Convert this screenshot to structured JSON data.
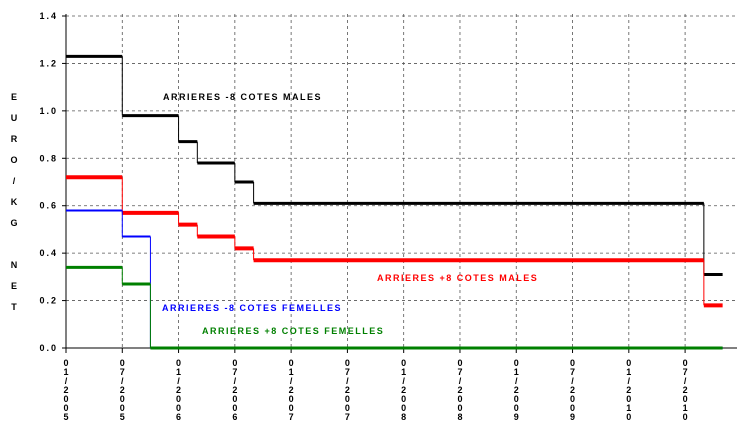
{
  "chart_data": {
    "type": "step",
    "y_label": "EURO/KG NET",
    "xlim": [
      "01/2005",
      "12/2010"
    ],
    "xticks": [
      "01/2005",
      "07/2005",
      "01/2006",
      "07/2006",
      "01/2007",
      "07/2007",
      "01/2008",
      "07/2008",
      "01/2009",
      "07/2009",
      "01/2010",
      "07/2010"
    ],
    "ylim": [
      0,
      1.4
    ],
    "yticks": [
      {
        "value": 0,
        "label": "0.0"
      },
      {
        "value": 0.2,
        "label": "0.2"
      },
      {
        "value": 0.4,
        "label": "0.4"
      },
      {
        "value": 0.6,
        "label": "0.6"
      },
      {
        "value": 0.8,
        "label": "0.8"
      },
      {
        "value": 1,
        "label": "1.0"
      },
      {
        "value": 1.2,
        "label": "1.2"
      },
      {
        "value": 1.4,
        "label": "1.4"
      }
    ],
    "grid": true,
    "series": [
      {
        "name": "ARRIERES -8 COTES MALES",
        "color": "#000000",
        "x": [
          "01/2005",
          "07/2005",
          "01/2006",
          "03/2006",
          "07/2006",
          "09/2006",
          "09/2010",
          "11/2010"
        ],
        "values": [
          1.23,
          0.98,
          0.87,
          0.78,
          0.7,
          0.61,
          0.31,
          0.31
        ]
      },
      {
        "name": "ARRIERES +8 COTES MALES",
        "color": "#ff0000",
        "x": [
          "01/2005",
          "07/2005",
          "01/2006",
          "03/2006",
          "07/2006",
          "09/2006",
          "09/2010",
          "11/2010"
        ],
        "values": [
          0.72,
          0.57,
          0.52,
          0.47,
          0.42,
          0.37,
          0.18,
          0.18
        ]
      },
      {
        "name": "ARRIERES -8 COTES FEMELLES",
        "color": "#0000ff",
        "x": [
          "01/2005",
          "07/2005",
          "10/2005",
          "11/2010"
        ],
        "values": [
          0.58,
          0.47,
          0,
          0
        ]
      },
      {
        "name": "ARRIERES +8 COTES FEMELLES",
        "color": "#008000",
        "x": [
          "01/2005",
          "07/2005",
          "10/2005",
          "11/2010"
        ],
        "values": [
          0.34,
          0.27,
          0,
          0
        ]
      }
    ]
  }
}
